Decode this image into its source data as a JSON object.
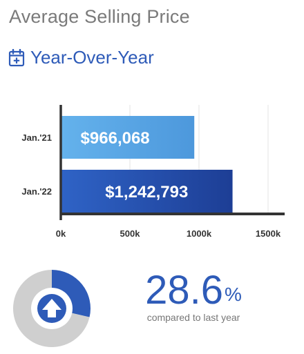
{
  "header": {
    "title": "Average Selling Price",
    "subtitle": "Year-Over-Year",
    "subtitle_icon": "calendar-plus-icon"
  },
  "chart_data": [
    {
      "type": "bar",
      "orientation": "horizontal",
      "categories": [
        "Jan.'21",
        "Jan.'22"
      ],
      "values": [
        966068,
        1242793
      ],
      "data_labels": [
        "$966,068",
        "$1,242,793"
      ],
      "xlim": [
        0,
        1500000
      ],
      "xticks": [
        0,
        500000,
        1000000,
        1500000
      ],
      "xtick_labels": [
        "0k",
        "500k",
        "1000k",
        "1500k"
      ],
      "grid": "vertical",
      "colors": [
        "#5aa6e6",
        "#2452b5"
      ]
    },
    {
      "type": "pie",
      "style": "donut",
      "values": [
        28.6,
        71.4
      ],
      "colors": [
        "#2e5bb8",
        "#cfcfcf"
      ],
      "center_icon": "up-arrow-icon"
    }
  ],
  "change": {
    "value": "28.6",
    "unit": "%",
    "caption": "compared to last year",
    "color": "#2e5bb8"
  }
}
